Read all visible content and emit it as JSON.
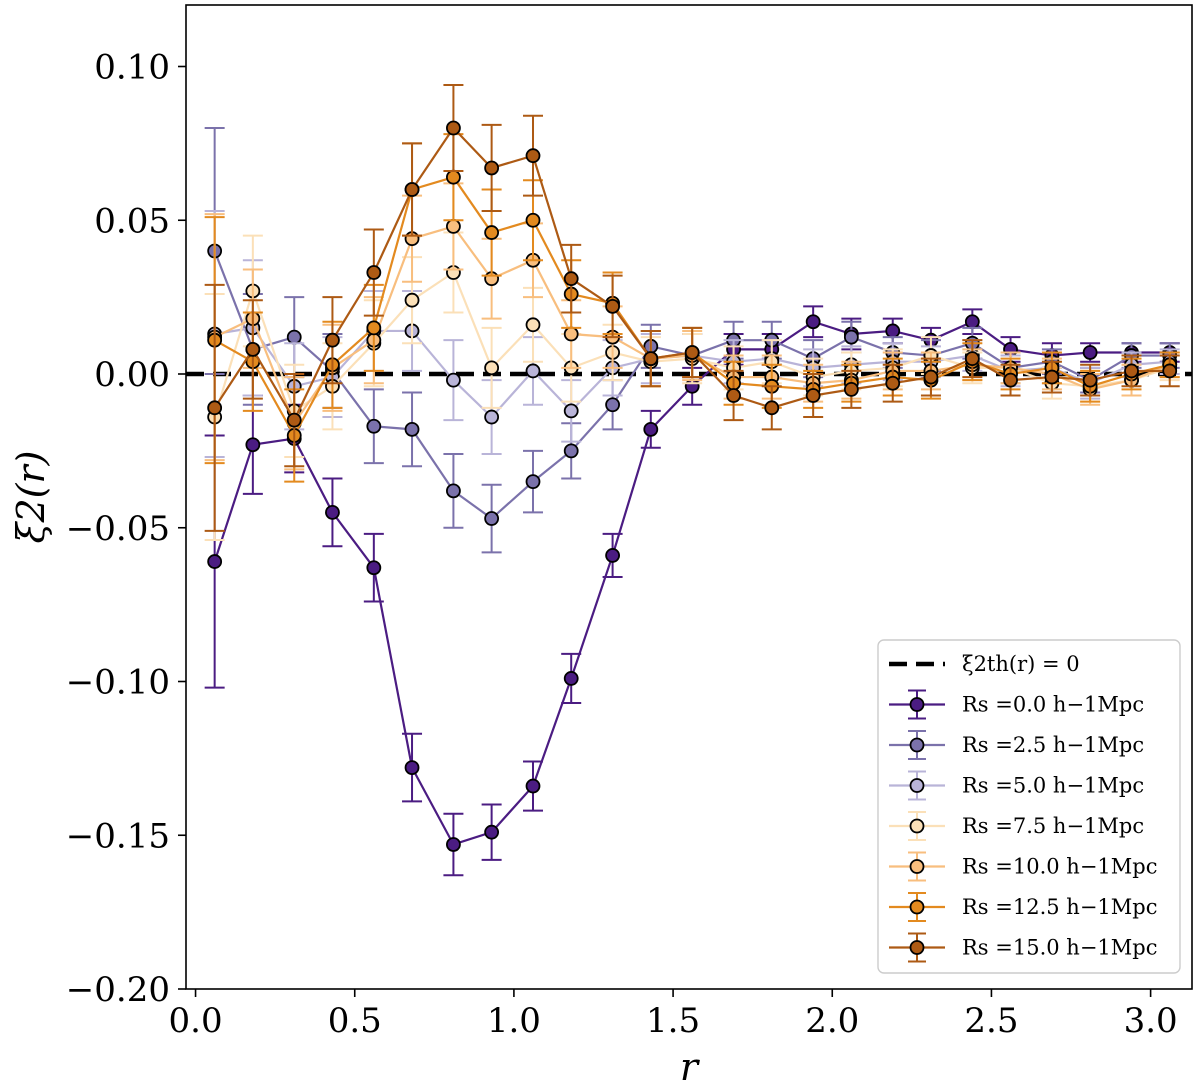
{
  "chart_data": {
    "type": "line",
    "title": "",
    "xlabel": "r",
    "ylabel": "ξ2(r)",
    "xlim": [
      -0.03,
      3.13
    ],
    "ylim": [
      -0.2,
      0.12
    ],
    "xticks": [
      0.0,
      0.5,
      1.0,
      1.5,
      2.0,
      2.5,
      3.0
    ],
    "xtick_labels": [
      "0.0",
      "0.5",
      "1.0",
      "1.5",
      "2.0",
      "2.5",
      "3.0"
    ],
    "yticks": [
      -0.2,
      -0.15,
      -0.1,
      -0.05,
      0.0,
      0.05,
      0.1
    ],
    "ytick_labels": [
      "−0.20",
      "−0.15",
      "−0.10",
      "−0.05",
      "0.00",
      "0.05",
      "0.10"
    ],
    "grid": false,
    "legend_position": "lower-right",
    "reference_line": {
      "label": "ξ2th(r) = 0",
      "y": 0.0,
      "color": "#000000",
      "style": "dashed"
    },
    "x": [
      0.06,
      0.18,
      0.31,
      0.43,
      0.56,
      0.68,
      0.81,
      0.93,
      1.06,
      1.18,
      1.31,
      1.43,
      1.56,
      1.69,
      1.81,
      1.94,
      2.06,
      2.19,
      2.31,
      2.44,
      2.56,
      2.69,
      2.81,
      2.94,
      3.06
    ],
    "series": [
      {
        "name": "Rs =0.0 h−1Mpc",
        "color": "#4b1c82",
        "values": [
          -0.061,
          -0.023,
          -0.021,
          -0.045,
          -0.063,
          -0.128,
          -0.153,
          -0.149,
          -0.134,
          -0.099,
          -0.059,
          -0.018,
          -0.004,
          0.008,
          0.008,
          0.017,
          0.013,
          0.014,
          0.011,
          0.017,
          0.008,
          0.006,
          0.007,
          0.007,
          0.007
        ],
        "errors": [
          0.041,
          0.016,
          0.011,
          0.011,
          0.011,
          0.011,
          0.01,
          0.009,
          0.008,
          0.008,
          0.007,
          0.006,
          0.006,
          0.005,
          0.005,
          0.005,
          0.005,
          0.004,
          0.004,
          0.004,
          0.004,
          0.004,
          0.003,
          0.003,
          0.003
        ]
      },
      {
        "name": "Rs =2.5 h−1Mpc",
        "color": "#7b72ab",
        "values": [
          0.04,
          0.008,
          0.012,
          0.001,
          -0.017,
          -0.018,
          -0.038,
          -0.047,
          -0.035,
          -0.025,
          -0.01,
          0.009,
          0.006,
          0.011,
          0.011,
          0.005,
          0.012,
          0.007,
          0.006,
          0.01,
          0.002,
          0.004,
          -0.002,
          0.006,
          0.006
        ],
        "errors": [
          0.04,
          0.018,
          0.013,
          0.012,
          0.012,
          0.012,
          0.012,
          0.011,
          0.01,
          0.009,
          0.008,
          0.007,
          0.007,
          0.006,
          0.006,
          0.006,
          0.005,
          0.005,
          0.005,
          0.005,
          0.005,
          0.004,
          0.004,
          0.004,
          0.004
        ]
      },
      {
        "name": "Rs =5.0 h−1Mpc",
        "color": "#b9b4d8",
        "values": [
          0.013,
          0.015,
          -0.004,
          -0.001,
          0.014,
          0.014,
          -0.002,
          -0.014,
          0.001,
          -0.012,
          0.002,
          0.005,
          0.006,
          0.004,
          0.005,
          0.002,
          0.003,
          0.004,
          0.004,
          0.006,
          0.001,
          0.002,
          -0.003,
          0.003,
          0.004
        ],
        "errors": [
          0.04,
          0.022,
          0.014,
          0.013,
          0.013,
          0.013,
          0.013,
          0.012,
          0.011,
          0.01,
          0.009,
          0.008,
          0.007,
          0.007,
          0.006,
          0.006,
          0.006,
          0.006,
          0.005,
          0.005,
          0.005,
          0.005,
          0.005,
          0.004,
          0.004
        ]
      },
      {
        "name": "Rs =7.5 h−1Mpc",
        "color": "#fbe0b8",
        "values": [
          -0.014,
          0.027,
          -0.012,
          -0.004,
          0.01,
          0.024,
          0.033,
          0.002,
          0.016,
          0.002,
          0.007,
          0.004,
          0.005,
          0.002,
          0.004,
          -0.001,
          0.001,
          0.002,
          0.006,
          0.002,
          0.002,
          -0.003,
          -0.004,
          -0.002,
          0.002
        ],
        "errors": [
          0.04,
          0.018,
          0.015,
          0.014,
          0.014,
          0.014,
          0.013,
          0.013,
          0.012,
          0.011,
          0.009,
          0.008,
          0.008,
          0.007,
          0.007,
          0.006,
          0.006,
          0.006,
          0.006,
          0.005,
          0.005,
          0.005,
          0.005,
          0.005,
          0.004
        ]
      },
      {
        "name": "Rs =10.0 h−1Mpc",
        "color": "#f8be7e",
        "values": [
          0.012,
          0.018,
          -0.016,
          0.002,
          0.011,
          0.044,
          0.048,
          0.031,
          0.037,
          0.013,
          0.012,
          0.005,
          0.006,
          -0.001,
          -0.001,
          -0.003,
          -0.002,
          0.001,
          0.001,
          0.003,
          0.002,
          0.0,
          -0.005,
          -0.002,
          0.003
        ],
        "errors": [
          0.04,
          0.016,
          0.015,
          0.014,
          0.014,
          0.014,
          0.014,
          0.013,
          0.012,
          0.011,
          0.01,
          0.009,
          0.008,
          0.007,
          0.007,
          0.006,
          0.006,
          0.006,
          0.006,
          0.005,
          0.005,
          0.005,
          0.005,
          0.005,
          0.004
        ]
      },
      {
        "name": "Rs =12.5 h−1Mpc",
        "color": "#e38a1f",
        "values": [
          0.011,
          0.004,
          -0.02,
          0.003,
          0.015,
          0.06,
          0.064,
          0.046,
          0.05,
          0.026,
          0.023,
          0.005,
          0.007,
          -0.003,
          -0.004,
          -0.005,
          -0.003,
          -0.001,
          -0.002,
          0.004,
          0.0,
          0.002,
          -0.004,
          0.0,
          0.003
        ],
        "errors": [
          0.04,
          0.016,
          0.015,
          0.014,
          0.014,
          0.015,
          0.014,
          0.014,
          0.013,
          0.011,
          0.01,
          0.009,
          0.008,
          0.007,
          0.007,
          0.006,
          0.006,
          0.006,
          0.006,
          0.006,
          0.005,
          0.005,
          0.005,
          0.005,
          0.004
        ]
      },
      {
        "name": "Rs =15.0 h−1Mpc",
        "color": "#ad5a14",
        "values": [
          -0.011,
          0.008,
          -0.015,
          0.011,
          0.033,
          0.06,
          0.08,
          0.067,
          0.071,
          0.031,
          0.022,
          0.005,
          0.007,
          -0.007,
          -0.011,
          -0.007,
          -0.005,
          -0.003,
          -0.001,
          0.005,
          -0.002,
          -0.001,
          -0.002,
          0.001,
          0.001
        ],
        "errors": [
          0.04,
          0.016,
          0.015,
          0.014,
          0.014,
          0.015,
          0.014,
          0.014,
          0.013,
          0.011,
          0.01,
          0.009,
          0.008,
          0.008,
          0.007,
          0.007,
          0.006,
          0.006,
          0.006,
          0.006,
          0.005,
          0.005,
          0.005,
          0.005,
          0.005
        ]
      }
    ]
  }
}
